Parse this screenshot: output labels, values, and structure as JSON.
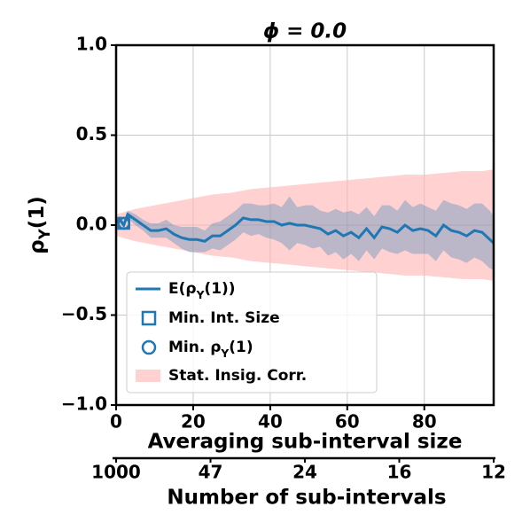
{
  "chart_data": {
    "type": "line",
    "title": "ϕ = 0.0",
    "xlabel": "Averaging sub-interval size",
    "ylabel": [
      "ρ",
      "Y",
      "(1)"
    ],
    "x2label": "Number of sub-intervals",
    "xlim": [
      0,
      98
    ],
    "ylim": [
      -1.0,
      1.0
    ],
    "xticks": [
      0,
      20,
      40,
      60,
      80
    ],
    "yticks": [
      {
        "value": 1.0,
        "label": "1.0"
      },
      {
        "value": 0.5,
        "label": "0.5"
      },
      {
        "value": 0.0,
        "label": "0.0"
      },
      {
        "value": -0.5,
        "label": "−0.5"
      },
      {
        "value": -1.0,
        "label": "−1.0"
      }
    ],
    "x2ticks": [
      {
        "value": 0,
        "label": "1000"
      },
      {
        "value": 24.5,
        "label": "47"
      },
      {
        "value": 49,
        "label": "24"
      },
      {
        "value": 73.5,
        "label": "16"
      },
      {
        "value": 98,
        "label": "12"
      }
    ],
    "grid": true,
    "legend": "lower left",
    "series": [
      {
        "name": [
          "E(ρ",
          "Y",
          "(1))"
        ],
        "color": "#1f77b4",
        "x": [
          0,
          1,
          2,
          3,
          5,
          7,
          9,
          11,
          13,
          15,
          17,
          19,
          21,
          23,
          25,
          27,
          29,
          31,
          33,
          35,
          37,
          39,
          41,
          43,
          45,
          47,
          49,
          51,
          53,
          55,
          57,
          59,
          61,
          63,
          65,
          67,
          69,
          71,
          73,
          75,
          77,
          79,
          81,
          83,
          85,
          87,
          89,
          91,
          93,
          95,
          97,
          98
        ],
        "values": [
          0.02,
          0.03,
          0.0,
          0.06,
          0.03,
          0.0,
          -0.03,
          -0.03,
          -0.02,
          -0.05,
          -0.07,
          -0.08,
          -0.08,
          -0.09,
          -0.06,
          -0.06,
          -0.03,
          0.0,
          0.04,
          0.03,
          0.03,
          0.02,
          0.02,
          0.0,
          0.01,
          0.0,
          0.0,
          -0.01,
          -0.02,
          -0.05,
          -0.03,
          -0.06,
          -0.04,
          -0.07,
          -0.02,
          -0.07,
          -0.01,
          -0.02,
          -0.04,
          0.0,
          -0.03,
          -0.02,
          -0.03,
          -0.06,
          0.0,
          -0.03,
          -0.04,
          -0.06,
          -0.03,
          -0.04,
          -0.08,
          -0.1
        ],
        "upper": [
          0.03,
          0.05,
          0.02,
          0.08,
          0.06,
          0.03,
          0.01,
          0.01,
          0.03,
          0.0,
          -0.01,
          -0.01,
          -0.01,
          -0.03,
          0.01,
          0.02,
          0.05,
          0.08,
          0.12,
          0.12,
          0.11,
          0.11,
          0.12,
          0.1,
          0.16,
          0.1,
          0.11,
          0.11,
          0.08,
          0.07,
          0.09,
          0.07,
          0.08,
          0.06,
          0.1,
          0.05,
          0.11,
          0.11,
          0.08,
          0.14,
          0.1,
          0.12,
          0.1,
          0.08,
          0.14,
          0.12,
          0.11,
          0.09,
          0.12,
          0.12,
          0.08,
          0.05
        ],
        "lower": [
          0.01,
          0.01,
          -0.02,
          0.04,
          0.0,
          -0.03,
          -0.07,
          -0.07,
          -0.07,
          -0.1,
          -0.13,
          -0.15,
          -0.15,
          -0.15,
          -0.13,
          -0.14,
          -0.11,
          -0.08,
          -0.04,
          -0.06,
          -0.05,
          -0.07,
          -0.08,
          -0.1,
          -0.14,
          -0.1,
          -0.11,
          -0.13,
          -0.12,
          -0.17,
          -0.15,
          -0.19,
          -0.16,
          -0.2,
          -0.14,
          -0.19,
          -0.13,
          -0.15,
          -0.16,
          -0.14,
          -0.16,
          -0.16,
          -0.16,
          -0.2,
          -0.14,
          -0.18,
          -0.19,
          -0.21,
          -0.18,
          -0.2,
          -0.24,
          -0.25
        ]
      }
    ],
    "min_int_size": {
      "name": "Min. Int. Size",
      "color": "#1f77b4",
      "x": 2,
      "y": 0.01
    },
    "min_rho": {
      "name": [
        "Min. ρ",
        "Y",
        "(1)"
      ],
      "color": "#1f77b4",
      "x": 2,
      "y": 0.01
    },
    "insig": {
      "name": "Stat. Insig. Corr.",
      "color": "#ffb3b3",
      "x": [
        0,
        5,
        10,
        15,
        20,
        25,
        30,
        35,
        40,
        45,
        50,
        55,
        60,
        65,
        70,
        75,
        80,
        85,
        90,
        95,
        98
      ],
      "upper": [
        0.06,
        0.09,
        0.11,
        0.13,
        0.15,
        0.17,
        0.18,
        0.2,
        0.21,
        0.22,
        0.23,
        0.24,
        0.25,
        0.26,
        0.27,
        0.28,
        0.28,
        0.29,
        0.3,
        0.3,
        0.31
      ],
      "lower": [
        -0.06,
        -0.09,
        -0.11,
        -0.13,
        -0.15,
        -0.17,
        -0.18,
        -0.2,
        -0.21,
        -0.22,
        -0.23,
        -0.24,
        -0.25,
        -0.26,
        -0.27,
        -0.28,
        -0.28,
        -0.29,
        -0.3,
        -0.3,
        -0.31
      ]
    }
  }
}
